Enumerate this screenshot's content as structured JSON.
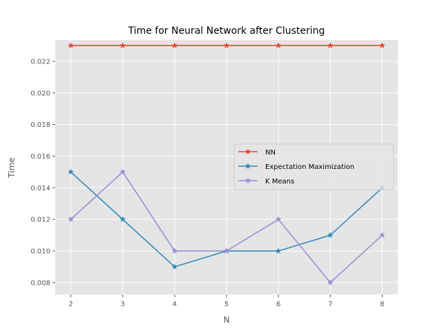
{
  "chart_data": {
    "type": "line",
    "title": "Time for Neural Network after Clustering",
    "xlabel": "N",
    "ylabel": "Time",
    "x": [
      2,
      3,
      4,
      5,
      6,
      7,
      8
    ],
    "xlim": [
      1.7,
      8.3
    ],
    "ylim": [
      0.00725,
      0.02335
    ],
    "yticks": [
      "0.008",
      "0.010",
      "0.012",
      "0.014",
      "0.016",
      "0.018",
      "0.020",
      "0.022"
    ],
    "xticks": [
      "2",
      "3",
      "4",
      "5",
      "6",
      "7",
      "8"
    ],
    "grid": true,
    "legend_position": "center-right",
    "series": [
      {
        "name": "NN",
        "color": "#E24A33",
        "marker": "star",
        "values": [
          0.023,
          0.023,
          0.023,
          0.023,
          0.023,
          0.023,
          0.023
        ]
      },
      {
        "name": "Expectation Maximization",
        "color": "#348ABD",
        "marker": "star",
        "values": [
          0.015,
          0.012,
          0.009,
          0.01,
          0.01,
          0.011,
          0.014
        ]
      },
      {
        "name": "K Means",
        "color": "#988ED5",
        "marker": "star",
        "values": [
          0.012,
          0.015,
          0.01,
          0.01,
          0.012,
          0.008,
          0.011
        ]
      }
    ]
  }
}
